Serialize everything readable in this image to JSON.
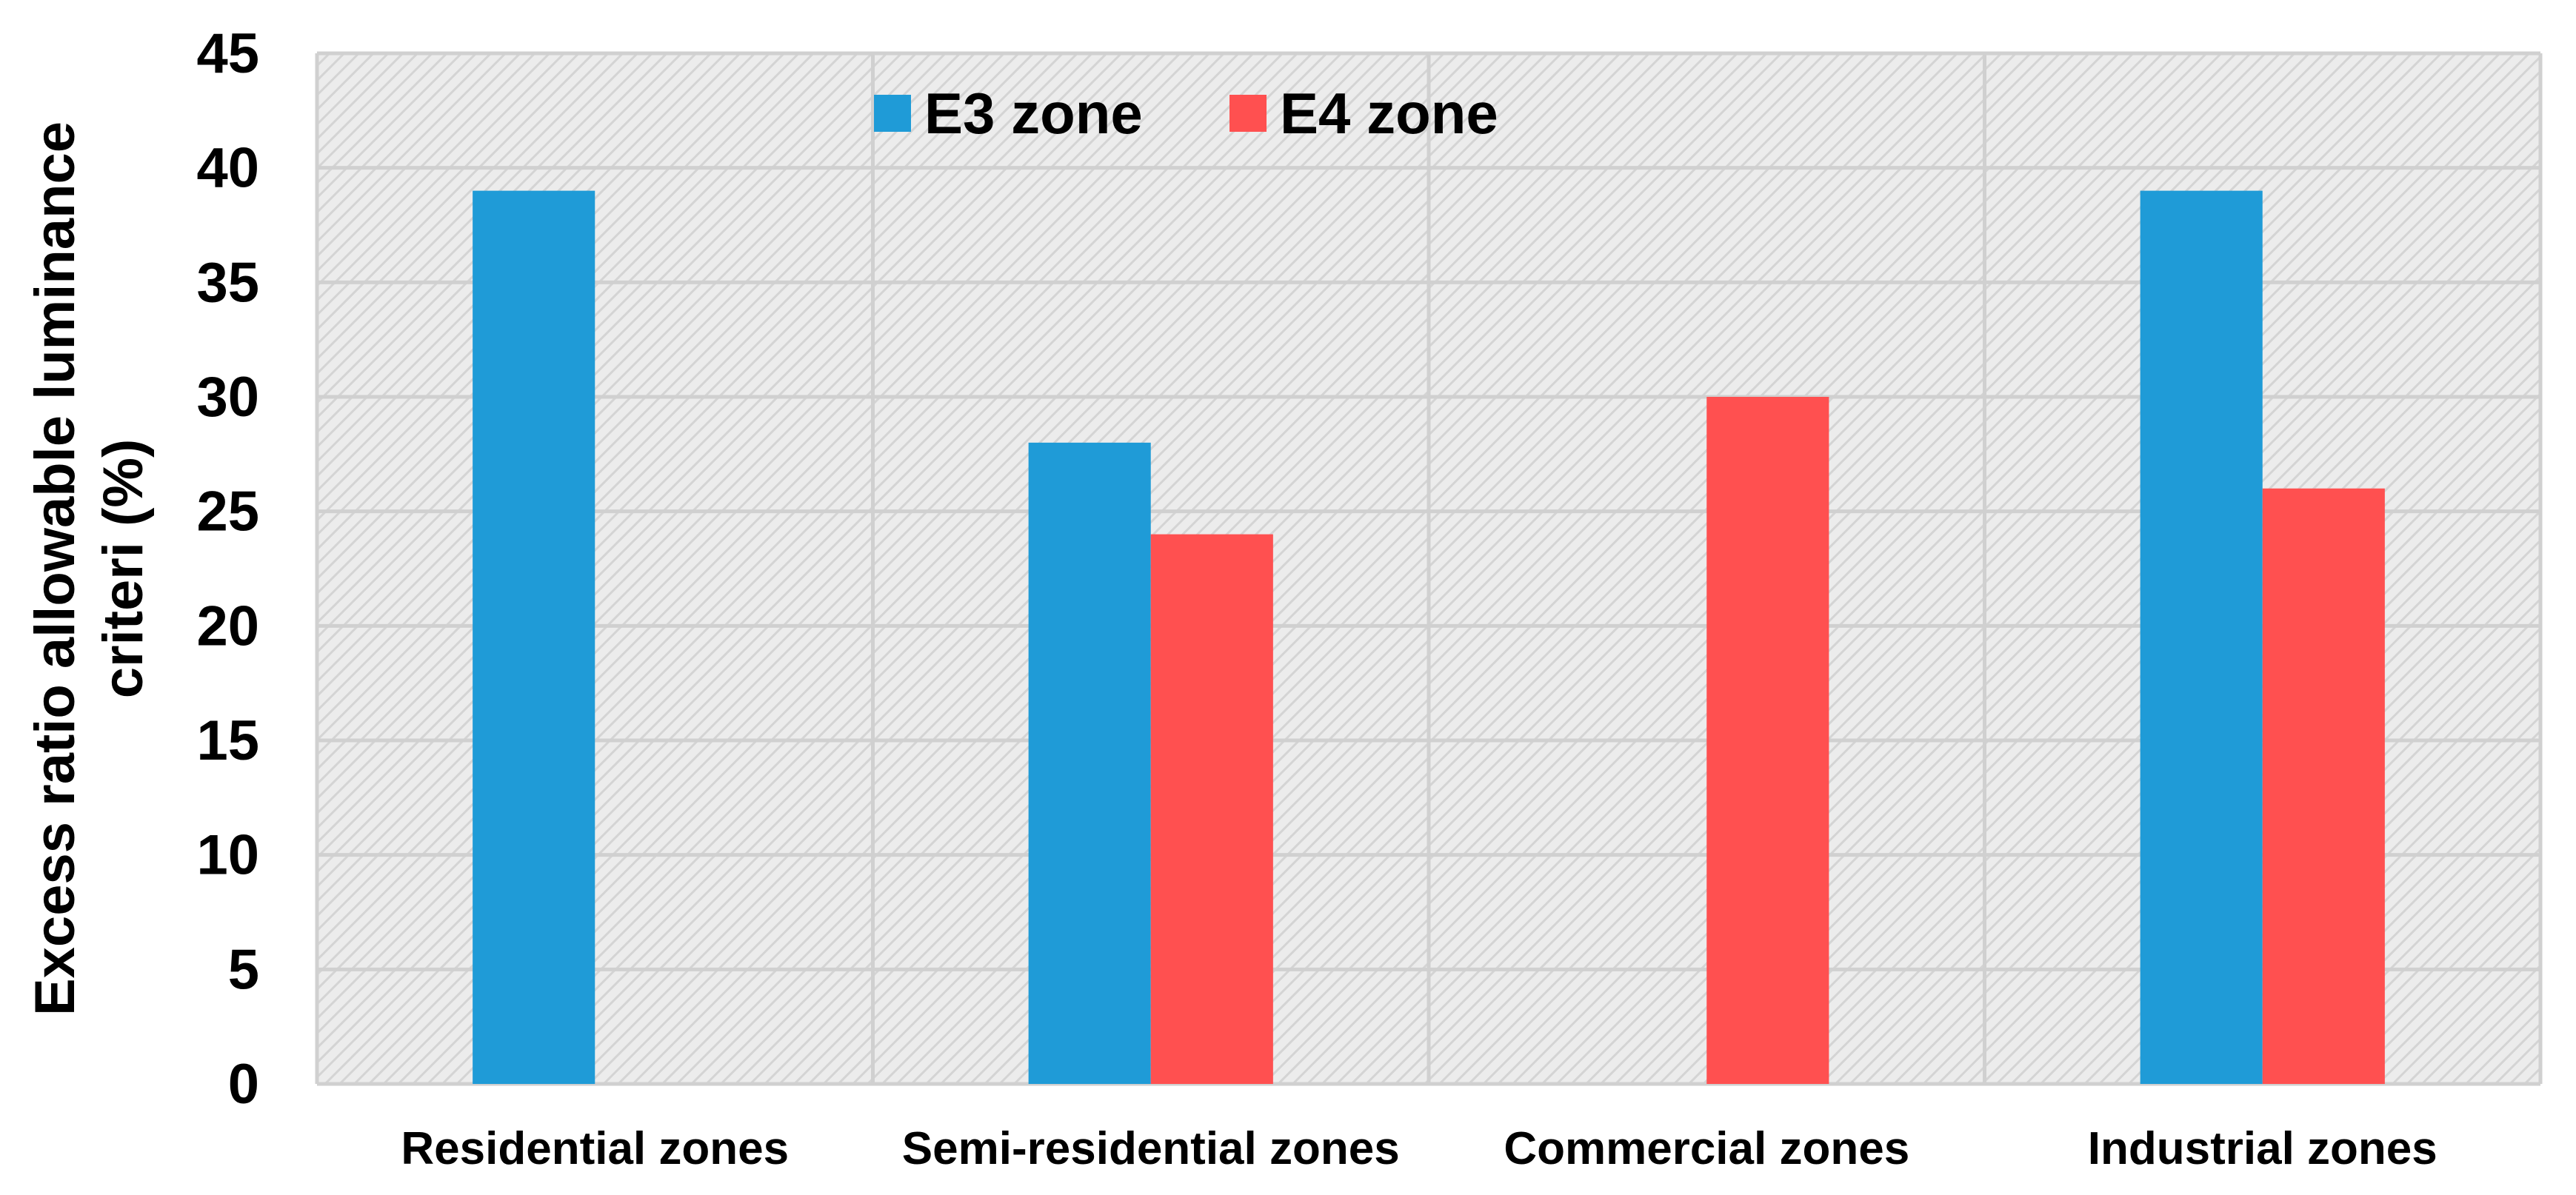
{
  "chart_data": {
    "type": "bar",
    "title": "",
    "xlabel": "",
    "ylabel": "Excess ratio allowable luminance criteri (%)",
    "ylabel_lines": [
      "Excess ratio allowable luminance",
      "criteri (%)"
    ],
    "categories": [
      "Residential zones",
      "Semi-residential zones",
      "Commercial zones",
      "Industrial zones"
    ],
    "series": [
      {
        "name": "E3 zone",
        "color": "#1f9bd7",
        "values": [
          39,
          28,
          0,
          39
        ]
      },
      {
        "name": "E4 zone",
        "color": "#ff5050",
        "values": [
          0,
          24,
          30,
          26
        ]
      }
    ],
    "ylim": [
      0,
      45
    ],
    "yticks": [
      0,
      5,
      10,
      15,
      20,
      25,
      30,
      35,
      40,
      45
    ],
    "grid": true,
    "legend": "top-center",
    "colors": {
      "plot_background": "#ececec",
      "hatch": "#d4d4d4",
      "gridline": "#d0d0d0"
    }
  }
}
